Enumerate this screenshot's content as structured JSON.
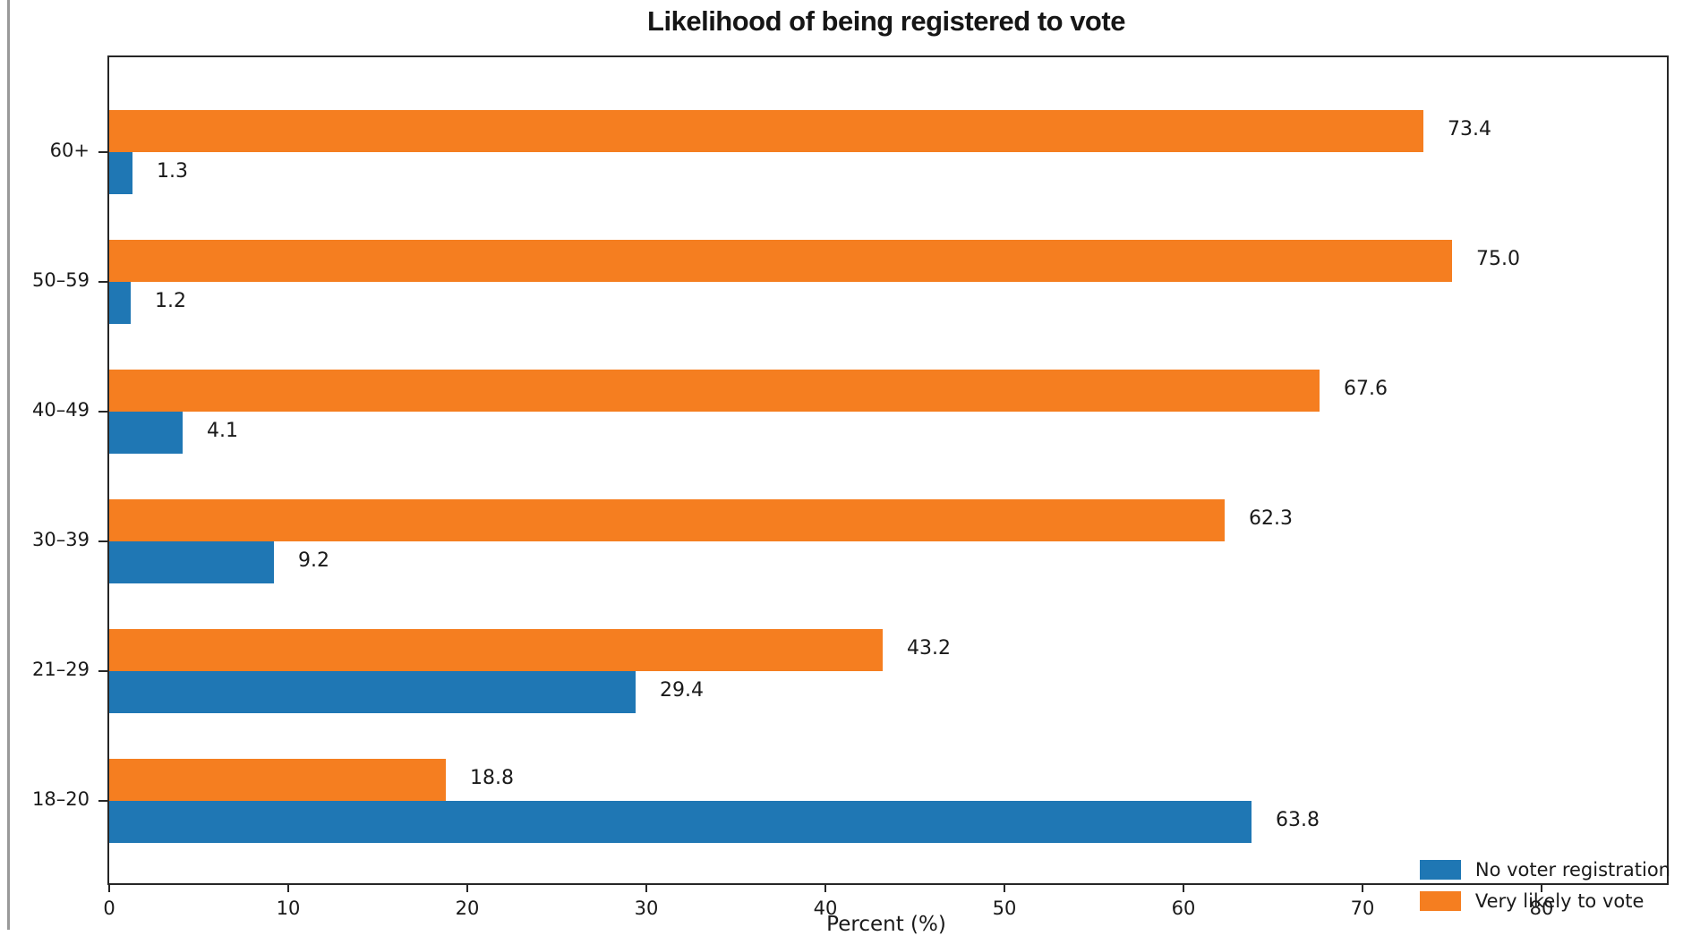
{
  "chart_data": {
    "type": "bar",
    "orientation": "horizontal",
    "title": "Likelihood of being registered to vote",
    "xlabel": "Percent (%)",
    "categories": [
      "60+",
      "50–59",
      "40–49",
      "30–39",
      "21–29",
      "18–20"
    ],
    "series": [
      {
        "name": "No voter registration",
        "color": "#1f77b4",
        "values": [
          1.3,
          1.2,
          4.1,
          9.2,
          29.4,
          63.8
        ],
        "labels": [
          "1.3",
          "1.2",
          "4.1",
          "9.2",
          "29.4",
          "63.8"
        ]
      },
      {
        "name": "Very likely to vote",
        "color": "#f57e20",
        "values": [
          73.4,
          75.0,
          67.6,
          62.3,
          43.2,
          18.8
        ],
        "labels": [
          "73.4",
          "75.0",
          "67.6",
          "62.3",
          "43.2",
          "18.8"
        ]
      }
    ],
    "x_ticks": [
      "0",
      "10",
      "20",
      "30",
      "40",
      "50",
      "60",
      "70",
      "80"
    ],
    "x_tick_values": [
      0,
      10,
      20,
      30,
      40,
      50,
      60,
      70,
      80
    ],
    "xlim": [
      0,
      87
    ],
    "grid": false,
    "legend_position": "lower right"
  }
}
